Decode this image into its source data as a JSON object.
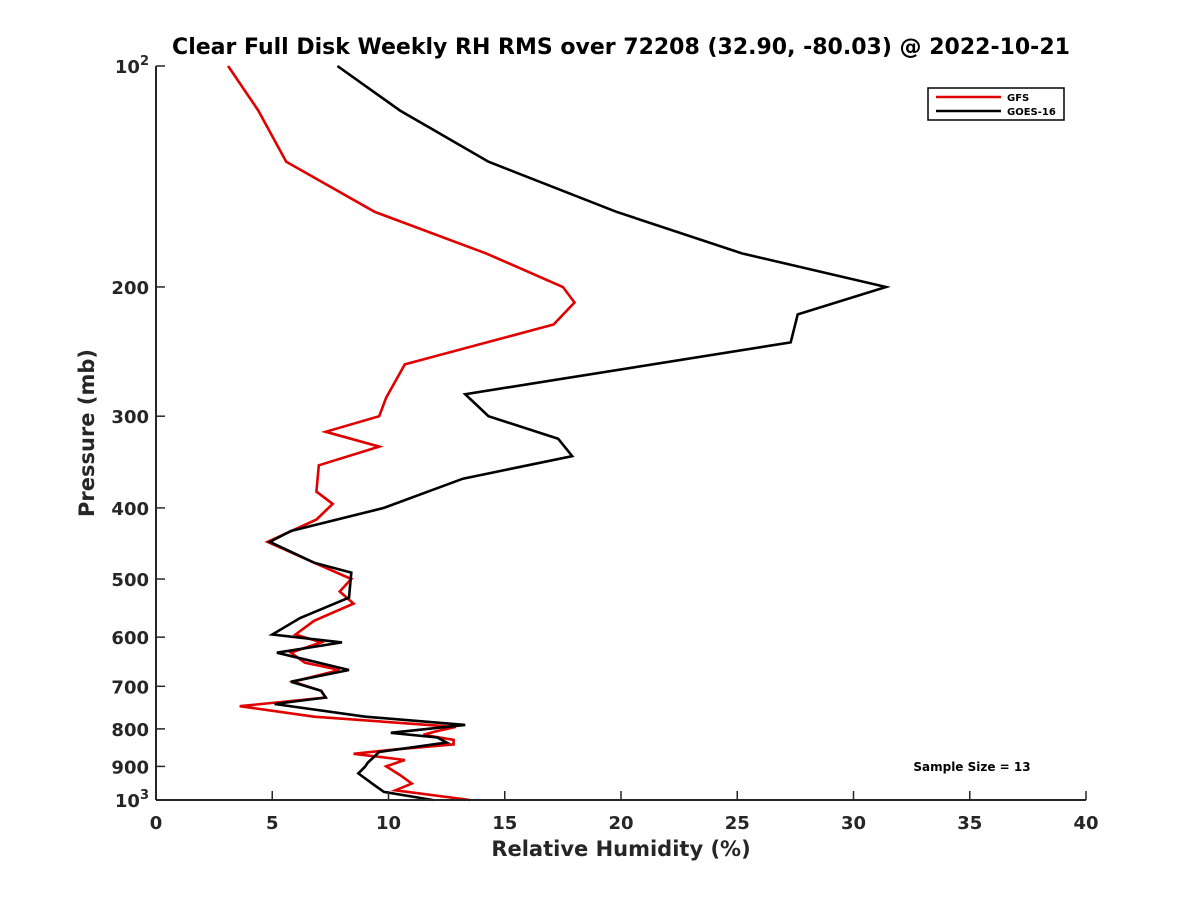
{
  "chart_data": {
    "type": "line",
    "title": "Clear Full Disk Weekly RH RMS over 72208 (32.90, -80.03) @ 2022-10-21",
    "xlabel": "Relative Humidity (%)",
    "ylabel": "Pressure (mb)",
    "xlim": [
      0,
      40
    ],
    "ylim": [
      100,
      1000
    ],
    "y_scale": "log",
    "y_reversed": true,
    "x_ticks": [
      "0",
      "5",
      "10",
      "15",
      "20",
      "25",
      "30",
      "35",
      "40"
    ],
    "y_ticks": [
      {
        "value": 100,
        "base": "10",
        "exp": "2"
      },
      {
        "value": 200,
        "label": "200"
      },
      {
        "value": 300,
        "label": "300"
      },
      {
        "value": 400,
        "label": "400"
      },
      {
        "value": 500,
        "label": "500"
      },
      {
        "value": 600,
        "label": "600"
      },
      {
        "value": 700,
        "label": "700"
      },
      {
        "value": 800,
        "label": "800"
      },
      {
        "value": 900,
        "label": "900"
      },
      {
        "value": 1000,
        "base": "10",
        "exp": "3"
      }
    ],
    "legend_position": "top-right",
    "grid": false,
    "annotation": "Sample Size = 13",
    "series": [
      {
        "name": "GFS",
        "color": "#e00000",
        "points": [
          [
            3.1,
            100
          ],
          [
            4.4,
            115
          ],
          [
            5.6,
            135
          ],
          [
            9.4,
            158
          ],
          [
            14.2,
            180
          ],
          [
            17.5,
            200
          ],
          [
            18.0,
            210
          ],
          [
            17.1,
            225
          ],
          [
            10.7,
            255
          ],
          [
            9.9,
            283
          ],
          [
            9.6,
            300
          ],
          [
            7.3,
            315
          ],
          [
            9.6,
            330
          ],
          [
            7.0,
            350
          ],
          [
            6.9,
            380
          ],
          [
            7.6,
            395
          ],
          [
            6.9,
            415
          ],
          [
            4.8,
            445
          ],
          [
            6.8,
            475
          ],
          [
            8.4,
            500
          ],
          [
            7.9,
            520
          ],
          [
            8.5,
            540
          ],
          [
            6.8,
            570
          ],
          [
            6.0,
            595
          ],
          [
            7.1,
            610
          ],
          [
            5.8,
            630
          ],
          [
            6.4,
            650
          ],
          [
            7.9,
            665
          ],
          [
            5.9,
            690
          ],
          [
            7.1,
            710
          ],
          [
            7.3,
            725
          ],
          [
            3.6,
            745
          ],
          [
            6.8,
            770
          ],
          [
            12.9,
            795
          ],
          [
            12.0,
            807
          ],
          [
            11.5,
            815
          ],
          [
            12.8,
            828
          ],
          [
            12.8,
            840
          ],
          [
            10.0,
            855
          ],
          [
            8.5,
            865
          ],
          [
            10.7,
            882
          ],
          [
            9.9,
            900
          ],
          [
            10.5,
            925
          ],
          [
            11.0,
            950
          ],
          [
            10.3,
            970
          ],
          [
            13.5,
            1000
          ]
        ]
      },
      {
        "name": "GOES-16",
        "color": "#000000",
        "points": [
          [
            7.8,
            100
          ],
          [
            10.5,
            115
          ],
          [
            14.3,
            135
          ],
          [
            19.8,
            158
          ],
          [
            25.2,
            180
          ],
          [
            31.4,
            200
          ],
          [
            27.6,
            218
          ],
          [
            27.3,
            238
          ],
          [
            13.3,
            280
          ],
          [
            14.3,
            300
          ],
          [
            17.3,
            322
          ],
          [
            17.9,
            340
          ],
          [
            13.2,
            365
          ],
          [
            9.8,
            400
          ],
          [
            5.8,
            430
          ],
          [
            4.9,
            445
          ],
          [
            6.8,
            475
          ],
          [
            8.4,
            490
          ],
          [
            8.3,
            530
          ],
          [
            6.2,
            565
          ],
          [
            5.0,
            595
          ],
          [
            8.0,
            610
          ],
          [
            5.2,
            630
          ],
          [
            8.3,
            665
          ],
          [
            5.8,
            690
          ],
          [
            7.1,
            710
          ],
          [
            7.3,
            725
          ],
          [
            5.1,
            740
          ],
          [
            9.0,
            770
          ],
          [
            13.3,
            790
          ],
          [
            10.1,
            810
          ],
          [
            12.1,
            822
          ],
          [
            12.5,
            835
          ],
          [
            9.6,
            860
          ],
          [
            9.1,
            890
          ],
          [
            9.0,
            900
          ],
          [
            8.7,
            920
          ],
          [
            9.4,
            955
          ],
          [
            9.8,
            975
          ],
          [
            11.9,
            1000
          ]
        ]
      }
    ]
  }
}
